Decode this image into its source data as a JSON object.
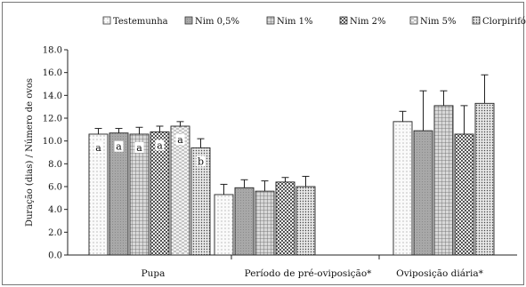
{
  "chart_data": {
    "type": "bar",
    "ylabel": "Duração (dias) / Número de ovos",
    "ylim": [
      0,
      18
    ],
    "yticks": [
      "0.0",
      "2.0",
      "4.0",
      "6.0",
      "8.0",
      "10.0",
      "12.0",
      "14.0",
      "16.0",
      "18.0"
    ],
    "categories": [
      "Pupa",
      "Período de pré-oviposição*",
      "Oviposição diária*"
    ],
    "legend_position": "top",
    "series": [
      {
        "name": "Testemunha",
        "pattern": "dots-light",
        "values": [
          10.6,
          5.3,
          11.7
        ],
        "err": [
          0.5,
          0.9,
          0.9
        ],
        "labels": [
          "a",
          "",
          ""
        ]
      },
      {
        "name": "Nim 0,5%",
        "pattern": "gray",
        "values": [
          10.7,
          5.9,
          10.9
        ],
        "err": [
          0.4,
          0.7,
          3.5
        ],
        "labels": [
          "a",
          "",
          ""
        ]
      },
      {
        "name": "Nim 1%",
        "pattern": "grid",
        "values": [
          10.6,
          5.6,
          13.1
        ],
        "err": [
          0.6,
          0.9,
          1.3
        ],
        "labels": [
          "a",
          "",
          ""
        ]
      },
      {
        "name": "Nim 2%",
        "pattern": "checker",
        "values": [
          10.8,
          6.4,
          10.6
        ],
        "err": [
          0.5,
          0.4,
          2.5
        ],
        "labels": [
          "a",
          "",
          ""
        ]
      },
      {
        "name": "Nim 5%",
        "pattern": "dashes",
        "values": [
          11.3,
          0,
          0
        ],
        "err": [
          0.4,
          0,
          0
        ],
        "labels": [
          "a",
          "",
          ""
        ]
      },
      {
        "name": "Clorpirifós",
        "pattern": "dots-dense",
        "values": [
          9.4,
          6.0,
          13.3
        ],
        "err": [
          0.8,
          0.9,
          2.5
        ],
        "labels": [
          "b",
          "",
          ""
        ]
      }
    ],
    "grid": false
  }
}
